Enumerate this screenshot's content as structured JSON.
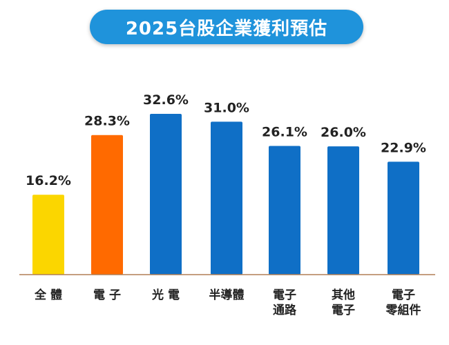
{
  "title": "2025台股企業獲利預估",
  "colors": {
    "title_bg": "#1f93db",
    "axis": "#b07f55",
    "label": "#222222"
  },
  "chart_data": {
    "type": "bar",
    "title": "2025台股企業獲利預估",
    "categories": [
      [
        "全 體"
      ],
      [
        "電 子"
      ],
      [
        "光 電"
      ],
      [
        "半導體"
      ],
      [
        "電子",
        "通路"
      ],
      [
        "其他",
        "電子"
      ],
      [
        "電子",
        "零組件"
      ]
    ],
    "values": [
      16.2,
      28.3,
      32.6,
      31.0,
      26.1,
      26.0,
      22.9
    ],
    "value_labels": [
      "16.2%",
      "28.3%",
      "32.6%",
      "31.0%",
      "26.1%",
      "26.0%",
      "22.9%"
    ],
    "bar_colors": [
      "#fbd600",
      "#ff6a00",
      "#0f6fc6",
      "#0f6fc6",
      "#0f6fc6",
      "#0f6fc6",
      "#0f6fc6"
    ],
    "ylim": [
      0,
      32.6
    ],
    "grid": false,
    "legend": "none",
    "xlabel": "",
    "ylabel": ""
  }
}
